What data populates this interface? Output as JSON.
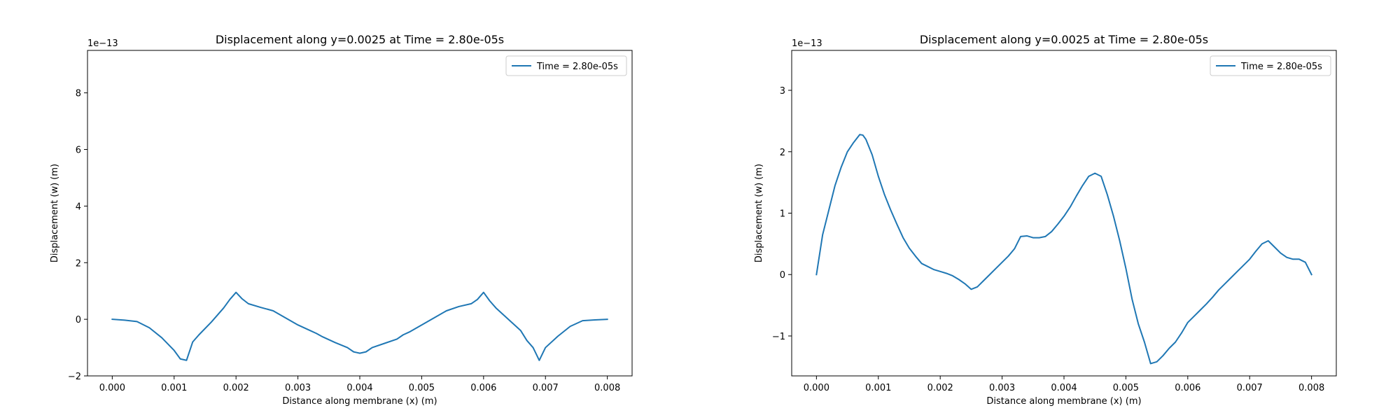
{
  "chart_data": [
    {
      "type": "line",
      "title": "Displacement along y=0.0025 at Time = 2.80e-05s",
      "xlabel": "Distance along membrane (x) (m)",
      "ylabel": "Displacement (w) (m)",
      "offset_label": "1e−13",
      "xlim": [
        -0.0004,
        0.0084
      ],
      "ylim": [
        -2.0,
        9.5
      ],
      "y_scale": 1e-13,
      "xticks": [
        0.0,
        0.001,
        0.002,
        0.003,
        0.004,
        0.005,
        0.006,
        0.007,
        0.008
      ],
      "xtick_labels": [
        "0.000",
        "0.001",
        "0.002",
        "0.003",
        "0.004",
        "0.005",
        "0.006",
        "0.007",
        "0.008"
      ],
      "yticks": [
        -2,
        0,
        2,
        4,
        6,
        8
      ],
      "ytick_labels": [
        "−2",
        "0",
        "2",
        "4",
        "6",
        "8"
      ],
      "grid": false,
      "legend_position": "upper-right",
      "color": "#1f77b4",
      "series": [
        {
          "name": "Time = 2.80e-05s",
          "x": [
            0.0,
            0.0002,
            0.0004,
            0.0006,
            0.0008,
            0.001,
            0.0011,
            0.0012,
            0.0013,
            0.0014,
            0.0016,
            0.0018,
            0.0019,
            0.002,
            0.0021,
            0.0022,
            0.0024,
            0.0026,
            0.0028,
            0.003,
            0.0032,
            0.0033,
            0.0034,
            0.0036,
            0.0038,
            0.0039,
            0.004,
            0.0041,
            0.0042,
            0.0044,
            0.0046,
            0.0047,
            0.0048,
            0.005,
            0.0052,
            0.0054,
            0.0056,
            0.0058,
            0.0059,
            0.006,
            0.0061,
            0.0062,
            0.0064,
            0.0066,
            0.0067,
            0.0068,
            0.0069,
            0.007,
            0.0072,
            0.0074,
            0.0076,
            0.0078,
            0.008
          ],
          "y": [
            0.0,
            -0.03,
            -0.08,
            -0.3,
            -0.65,
            -1.1,
            -1.4,
            -1.45,
            -0.8,
            -0.55,
            -0.1,
            0.4,
            0.7,
            0.95,
            0.72,
            0.55,
            0.42,
            0.3,
            0.05,
            -0.2,
            -0.4,
            -0.5,
            -0.62,
            -0.82,
            -1.0,
            -1.15,
            -1.2,
            -1.15,
            -1.0,
            -0.85,
            -0.7,
            -0.55,
            -0.45,
            -0.2,
            0.05,
            0.3,
            0.45,
            0.55,
            0.7,
            0.95,
            0.65,
            0.4,
            0.0,
            -0.4,
            -0.75,
            -1.0,
            -1.45,
            -1.0,
            -0.6,
            -0.25,
            -0.05,
            -0.02,
            0.0
          ]
        }
      ]
    },
    {
      "type": "line",
      "title": "Displacement along y=0.0025 at Time = 2.80e-05s",
      "xlabel": "Distance along membrane (x) (m)",
      "ylabel": "Displacement (w) (m)",
      "offset_label": "1e−13",
      "xlim": [
        -0.0004,
        0.0084
      ],
      "ylim": [
        -1.65,
        3.65
      ],
      "y_scale": 1e-13,
      "xticks": [
        0.0,
        0.001,
        0.002,
        0.003,
        0.004,
        0.005,
        0.006,
        0.007,
        0.008
      ],
      "xtick_labels": [
        "0.000",
        "0.001",
        "0.002",
        "0.003",
        "0.004",
        "0.005",
        "0.006",
        "0.007",
        "0.008"
      ],
      "yticks": [
        -1,
        0,
        1,
        2,
        3
      ],
      "ytick_labels": [
        "−1",
        "0",
        "1",
        "2",
        "3"
      ],
      "grid": false,
      "legend_position": "upper-right",
      "color": "#1f77b4",
      "series": [
        {
          "name": "Time = 2.80e-05s",
          "x": [
            0.0,
            0.0001,
            0.0002,
            0.0003,
            0.0004,
            0.0005,
            0.0006,
            0.0007,
            0.00075,
            0.0008,
            0.0009,
            0.001,
            0.0011,
            0.0012,
            0.0013,
            0.0014,
            0.0015,
            0.0016,
            0.0017,
            0.0018,
            0.0019,
            0.002,
            0.0021,
            0.0022,
            0.0023,
            0.0024,
            0.0025,
            0.0026,
            0.0027,
            0.0028,
            0.0029,
            0.003,
            0.0031,
            0.0032,
            0.0033,
            0.0034,
            0.0035,
            0.0036,
            0.0037,
            0.0038,
            0.0039,
            0.004,
            0.0041,
            0.0042,
            0.0043,
            0.0044,
            0.0045,
            0.0046,
            0.0047,
            0.0048,
            0.0049,
            0.005,
            0.0051,
            0.0052,
            0.0053,
            0.0054,
            0.0055,
            0.0056,
            0.0057,
            0.0058,
            0.0059,
            0.006,
            0.0061,
            0.0062,
            0.0063,
            0.0064,
            0.0065,
            0.0066,
            0.0067,
            0.0068,
            0.0069,
            0.007,
            0.0071,
            0.0072,
            0.0073,
            0.0074,
            0.0075,
            0.0076,
            0.0077,
            0.0078,
            0.0079,
            0.008
          ],
          "y": [
            0.0,
            0.65,
            1.05,
            1.45,
            1.75,
            2.0,
            2.15,
            2.28,
            2.27,
            2.2,
            1.95,
            1.6,
            1.3,
            1.05,
            0.82,
            0.6,
            0.43,
            0.3,
            0.18,
            0.13,
            0.08,
            0.05,
            0.02,
            -0.02,
            -0.08,
            -0.15,
            -0.24,
            -0.2,
            -0.1,
            0.0,
            0.1,
            0.2,
            0.3,
            0.42,
            0.62,
            0.63,
            0.6,
            0.6,
            0.62,
            0.7,
            0.82,
            0.95,
            1.1,
            1.28,
            1.45,
            1.6,
            1.65,
            1.6,
            1.3,
            0.95,
            0.55,
            0.1,
            -0.4,
            -0.8,
            -1.1,
            -1.45,
            -1.42,
            -1.32,
            -1.2,
            -1.1,
            -0.95,
            -0.78,
            -0.68,
            -0.58,
            -0.48,
            -0.37,
            -0.25,
            -0.15,
            -0.05,
            0.05,
            0.15,
            0.25,
            0.38,
            0.5,
            0.55,
            0.45,
            0.35,
            0.28,
            0.25,
            0.25,
            0.2,
            0.0
          ]
        }
      ]
    }
  ]
}
